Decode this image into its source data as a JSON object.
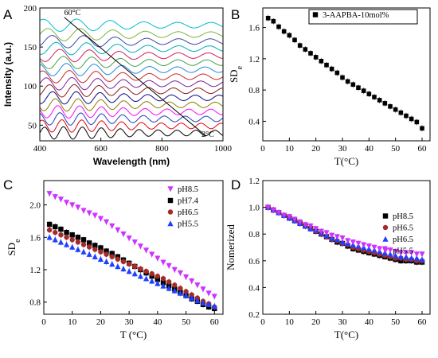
{
  "chart_data": [
    {
      "panel": "A",
      "type": "line",
      "xlabel": "Wavelength (nm)",
      "ylabel": "Intensity (a.u.)",
      "xlim": [
        400,
        1000
      ],
      "ylim": [
        30,
        200
      ],
      "x_ticks": [
        "400",
        "600",
        "800",
        "1000"
      ],
      "y_ticks": [
        "50",
        "100",
        "150",
        "200"
      ],
      "annotations": [
        "60°C",
        "2°C"
      ],
      "series_count": 16,
      "series_offsets": [
        40,
        49,
        58,
        67,
        76,
        85,
        94,
        103,
        112,
        121,
        130,
        139,
        148,
        157,
        166,
        178
      ],
      "series_colors": [
        "#000000",
        "#e8000b",
        "#1f3fbf",
        "#ff00ff",
        "#8b7d00",
        "#0b0b8b",
        "#8b1a1a",
        "#7b1fa2",
        "#c62828",
        "#1e88e5",
        "#43a047",
        "#d81b60",
        "#00acc1",
        "#3949ab",
        "#7cb342",
        "#00bcd4"
      ],
      "grid": false
    },
    {
      "panel": "B",
      "type": "scatter",
      "xlabel": "T(°C)",
      "ylabel": "SD",
      "ylabel_sub": "e",
      "xlim": [
        0,
        63
      ],
      "ylim": [
        0.15,
        1.85
      ],
      "x_ticks": [
        "0",
        "10",
        "20",
        "30",
        "40",
        "50",
        "60"
      ],
      "y_ticks": [
        "0.4",
        "0.8",
        "1.2",
        "1.6"
      ],
      "legend": "top-right",
      "series": [
        {
          "name": "3-AAPBA-10mol%",
          "color": "#000000",
          "marker": "square",
          "x": [
            2,
            4,
            6,
            8,
            10,
            12,
            14,
            16,
            18,
            20,
            22,
            24,
            26,
            28,
            30,
            32,
            34,
            36,
            38,
            40,
            42,
            44,
            46,
            48,
            50,
            52,
            54,
            56,
            58,
            60
          ],
          "y": [
            1.72,
            1.68,
            1.61,
            1.55,
            1.5,
            1.44,
            1.37,
            1.32,
            1.27,
            1.22,
            1.17,
            1.12,
            1.07,
            1.02,
            0.96,
            0.91,
            0.87,
            0.83,
            0.79,
            0.75,
            0.71,
            0.67,
            0.63,
            0.59,
            0.55,
            0.51,
            0.47,
            0.43,
            0.39,
            0.31
          ]
        }
      ],
      "grid": false
    },
    {
      "panel": "C",
      "type": "scatter",
      "xlabel": "T (°C)",
      "ylabel": "SD",
      "ylabel_sub": "e",
      "xlim": [
        0,
        63
      ],
      "ylim": [
        0.65,
        2.3
      ],
      "x_ticks": [
        "0",
        "10",
        "20",
        "30",
        "40",
        "50",
        "60"
      ],
      "y_ticks": [
        "0.8",
        "1.2",
        "1.6",
        "2.0"
      ],
      "legend": "top-right",
      "x": [
        2,
        4,
        6,
        8,
        10,
        12,
        14,
        16,
        18,
        20,
        22,
        24,
        26,
        28,
        30,
        32,
        34,
        36,
        38,
        40,
        42,
        44,
        46,
        48,
        50,
        52,
        54,
        56,
        58,
        60
      ],
      "series": [
        {
          "name": "pH8.5",
          "color": "#cc33ff",
          "marker": "triangle-down",
          "values": [
            2.14,
            2.1,
            2.07,
            2.03,
            2.0,
            1.97,
            1.93,
            1.9,
            1.87,
            1.83,
            1.79,
            1.74,
            1.69,
            1.64,
            1.59,
            1.54,
            1.49,
            1.44,
            1.39,
            1.34,
            1.29,
            1.25,
            1.2,
            1.16,
            1.11,
            1.06,
            1.01,
            0.96,
            0.91,
            0.87
          ]
        },
        {
          "name": "pH7.4",
          "color": "#000000",
          "marker": "square",
          "values": [
            1.76,
            1.73,
            1.7,
            1.66,
            1.63,
            1.6,
            1.57,
            1.53,
            1.5,
            1.47,
            1.43,
            1.4,
            1.36,
            1.32,
            1.28,
            1.24,
            1.2,
            1.16,
            1.12,
            1.08,
            1.04,
            1.0,
            0.96,
            0.92,
            0.88,
            0.84,
            0.81,
            0.77,
            0.74,
            0.72
          ]
        },
        {
          "name": "pH6.5",
          "color": "#a52a2a",
          "marker": "circle",
          "values": [
            1.69,
            1.66,
            1.63,
            1.6,
            1.57,
            1.54,
            1.51,
            1.48,
            1.45,
            1.42,
            1.39,
            1.36,
            1.33,
            1.3,
            1.27,
            1.24,
            1.21,
            1.18,
            1.15,
            1.12,
            1.09,
            1.05,
            1.01,
            0.97,
            0.93,
            0.89,
            0.85,
            0.81,
            0.78,
            0.74
          ]
        },
        {
          "name": "pH5.5",
          "color": "#1f3fff",
          "marker": "triangle-up",
          "values": [
            1.6,
            1.57,
            1.54,
            1.51,
            1.48,
            1.45,
            1.42,
            1.39,
            1.36,
            1.33,
            1.3,
            1.27,
            1.24,
            1.21,
            1.18,
            1.15,
            1.12,
            1.09,
            1.06,
            1.03,
            1.0,
            0.97,
            0.94,
            0.91,
            0.88,
            0.85,
            0.82,
            0.79,
            0.77,
            0.75
          ]
        }
      ],
      "grid": false
    },
    {
      "panel": "D",
      "type": "scatter",
      "xlabel": "T(°C)",
      "ylabel": "Nomerized",
      "xlim": [
        0,
        63
      ],
      "ylim": [
        0.2,
        1.2
      ],
      "x_ticks": [
        "0",
        "10",
        "20",
        "30",
        "40",
        "50",
        "60"
      ],
      "y_ticks": [
        "0.2",
        "0.4",
        "0.6",
        "0.8",
        "1.0",
        "1.2"
      ],
      "legend": "top-right",
      "x": [
        2,
        4,
        6,
        8,
        10,
        12,
        14,
        16,
        18,
        20,
        22,
        24,
        26,
        28,
        30,
        32,
        34,
        36,
        38,
        40,
        42,
        44,
        46,
        48,
        50,
        52,
        54,
        56,
        58,
        60
      ],
      "series": [
        {
          "name": "pH8.5",
          "color": "#000000",
          "marker": "square",
          "values": [
            1.0,
            0.98,
            0.96,
            0.94,
            0.92,
            0.9,
            0.88,
            0.86,
            0.84,
            0.82,
            0.8,
            0.78,
            0.76,
            0.74,
            0.73,
            0.71,
            0.69,
            0.68,
            0.67,
            0.66,
            0.65,
            0.64,
            0.63,
            0.62,
            0.61,
            0.6,
            0.6,
            0.6,
            0.59,
            0.59
          ]
        },
        {
          "name": "pH6.5",
          "color": "#a52a2a",
          "marker": "circle",
          "values": [
            1.0,
            0.98,
            0.96,
            0.94,
            0.92,
            0.9,
            0.88,
            0.86,
            0.84,
            0.82,
            0.8,
            0.78,
            0.76,
            0.75,
            0.73,
            0.72,
            0.7,
            0.69,
            0.68,
            0.67,
            0.66,
            0.65,
            0.64,
            0.63,
            0.62,
            0.62,
            0.61,
            0.61,
            0.6,
            0.6
          ]
        },
        {
          "name": "pH6.5",
          "color": "#1f3fff",
          "marker": "triangle-up",
          "values": [
            1.0,
            0.98,
            0.96,
            0.94,
            0.92,
            0.9,
            0.88,
            0.86,
            0.84,
            0.83,
            0.81,
            0.79,
            0.77,
            0.76,
            0.74,
            0.73,
            0.72,
            0.71,
            0.7,
            0.69,
            0.68,
            0.67,
            0.66,
            0.65,
            0.64,
            0.63,
            0.63,
            0.62,
            0.62,
            0.61
          ]
        },
        {
          "name": "pH5.5",
          "color": "#cc33ff",
          "marker": "triangle-down",
          "values": [
            1.0,
            0.98,
            0.96,
            0.94,
            0.93,
            0.91,
            0.89,
            0.87,
            0.86,
            0.84,
            0.82,
            0.81,
            0.79,
            0.78,
            0.77,
            0.75,
            0.74,
            0.73,
            0.72,
            0.71,
            0.7,
            0.69,
            0.69,
            0.68,
            0.67,
            0.66,
            0.66,
            0.66,
            0.65,
            0.65
          ]
        }
      ],
      "grid": false
    }
  ]
}
